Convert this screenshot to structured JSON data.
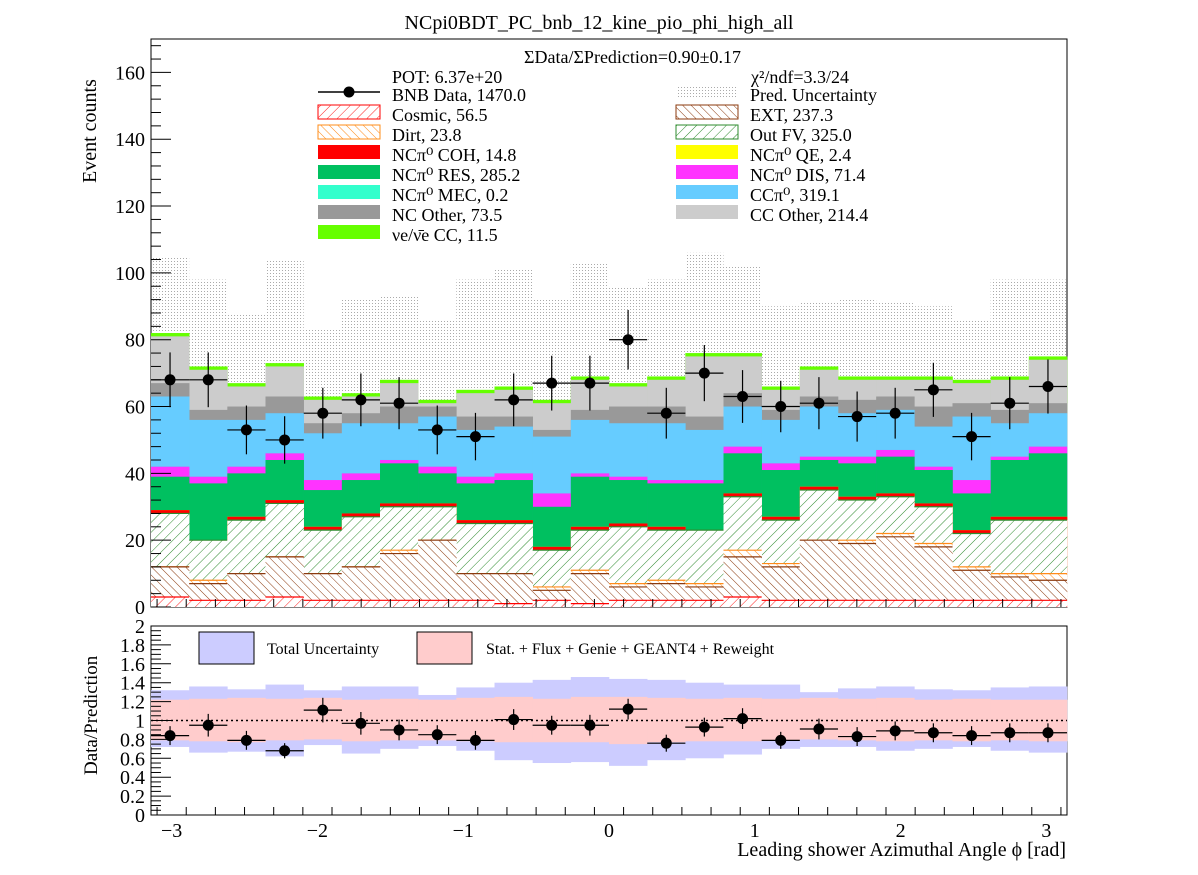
{
  "chart_data": [
    {
      "type": "stacked-histogram",
      "title": "NCpi0BDT_PC_bnb_12_kine_pio_phi_high_all",
      "ylabel": "Event counts",
      "xlim": [
        -3.1416,
        3.1416
      ],
      "ylim": [
        0,
        170
      ],
      "y_ticks": [
        0,
        20,
        40,
        60,
        80,
        100,
        120,
        140,
        160
      ],
      "grid": false,
      "summary_text": {
        "ratio_line": "ΣData/ΣPrediction=0.90±0.17",
        "pot": "POT: 6.37e+20",
        "chi2": "χ²/ndf=3.3/24"
      },
      "legend": {
        "placement": "top",
        "entries": [
          {
            "label": "BNB Data, 1470.0",
            "style": "marker",
            "color": "#000000"
          },
          {
            "label": "Pred. Uncertainty",
            "style": "dots",
            "color": "#c0c0c0"
          },
          {
            "label": "Cosmic, 56.5",
            "style": "hatch",
            "color": "#ff0000"
          },
          {
            "label": "EXT, 237.3",
            "style": "hatch",
            "color": "#8b3a0e"
          },
          {
            "label": "Dirt, 23.8",
            "style": "hatch",
            "color": "#ff8c1a"
          },
          {
            "label": "Out FV, 325.0",
            "style": "hatch",
            "color": "#2e8b2e"
          },
          {
            "label": "NCπ⁰ COH,  14.8",
            "style": "fill",
            "color": "#ff0000"
          },
          {
            "label": "NCπ⁰ QE,  2.4",
            "style": "fill",
            "color": "#ffff00"
          },
          {
            "label": "NCπ⁰ RES,  285.2",
            "style": "fill",
            "color": "#00c060"
          },
          {
            "label": "NCπ⁰ DIS,  71.4",
            "style": "fill",
            "color": "#ff33ff"
          },
          {
            "label": "NCπ⁰ MEC,  0.2",
            "style": "fill",
            "color": "#33ffcc"
          },
          {
            "label": "CCπ⁰, 319.1",
            "style": "fill",
            "color": "#66ccff"
          },
          {
            "label": "NC Other, 73.5",
            "style": "fill",
            "color": "#999999"
          },
          {
            "label": "CC Other, 214.4",
            "style": "fill",
            "color": "#cccccc"
          },
          {
            "label": "νe/ν̄e CC, 11.5",
            "style": "fill",
            "color": "#66ff00"
          }
        ]
      },
      "stack_cumulative": [
        {
          "name": "Cosmic",
          "color": "#ff0000",
          "values": [
            3,
            2,
            2,
            3,
            2,
            2,
            2,
            2,
            2,
            1,
            2,
            1,
            2,
            2,
            2,
            3,
            2,
            2,
            2,
            2,
            2,
            2,
            2,
            2
          ]
        },
        {
          "name": "EXT",
          "color": "#8b3a0e",
          "values": [
            12,
            7,
            10,
            15,
            10,
            12,
            16,
            20,
            10,
            10,
            5,
            10,
            6,
            7,
            6,
            15,
            12,
            20,
            19,
            21,
            18,
            11,
            9,
            8
          ]
        },
        {
          "name": "Dirt",
          "color": "#ff8c1a",
          "values": [
            12,
            8,
            10,
            15,
            10,
            12,
            17,
            20,
            10,
            10,
            6,
            11,
            7,
            8,
            7,
            17,
            13,
            20,
            20,
            22,
            19,
            12,
            10,
            10
          ]
        },
        {
          "name": "Out FV",
          "color": "#2e8b2e",
          "values": [
            28,
            20,
            26,
            31,
            23,
            27,
            30,
            30,
            25,
            25,
            17,
            23,
            24,
            23,
            23,
            33,
            26,
            35,
            32,
            33,
            30,
            22,
            26,
            26
          ]
        },
        {
          "name": "NCπ⁰ COH",
          "color": "#ff0000",
          "values": [
            29,
            20,
            27,
            32,
            24,
            28,
            31,
            31,
            26,
            26,
            18,
            24,
            25,
            24,
            23,
            34,
            27,
            36,
            33,
            34,
            31,
            23,
            27,
            27
          ]
        },
        {
          "name": "NCπ⁰ QE",
          "color": "#ffff00",
          "values": [
            29,
            20,
            27,
            32,
            24,
            28,
            31,
            31,
            26,
            26,
            18,
            24,
            25,
            24,
            23,
            34,
            27,
            36,
            33,
            34,
            31,
            23,
            27,
            27
          ]
        },
        {
          "name": "NCπ⁰ RES",
          "color": "#00c060",
          "values": [
            39,
            37,
            40,
            44,
            35,
            38,
            43,
            40,
            37,
            38,
            30,
            39,
            38,
            37,
            37,
            46,
            41,
            44,
            43,
            45,
            41,
            34,
            44,
            46
          ]
        },
        {
          "name": "NCπ⁰ DIS",
          "color": "#ff33ff",
          "values": [
            42,
            39,
            42,
            46,
            38,
            40,
            44,
            42,
            39,
            40,
            34,
            40,
            39,
            38,
            38,
            48,
            43,
            45,
            45,
            47,
            42,
            38,
            45,
            48
          ]
        },
        {
          "name": "NCπ⁰ MEC",
          "color": "#33ffcc",
          "values": [
            42,
            39,
            42,
            46,
            38,
            40,
            44,
            42,
            39,
            40,
            34,
            40,
            39,
            38,
            38,
            48,
            43,
            45,
            45,
            47,
            42,
            38,
            45,
            48
          ]
        },
        {
          "name": "CCπ⁰",
          "color": "#66ccff",
          "values": [
            63,
            56,
            56,
            58,
            52,
            55,
            55,
            57,
            53,
            54,
            51,
            56,
            55,
            55,
            53,
            60,
            56,
            60,
            58,
            59,
            54,
            57,
            55,
            58
          ]
        },
        {
          "name": "NC Other",
          "color": "#999999",
          "values": [
            67,
            59,
            60,
            63,
            55,
            58,
            60,
            60,
            57,
            57,
            53,
            59,
            60,
            60,
            57,
            64,
            59,
            63,
            62,
            63,
            60,
            61,
            59,
            61
          ]
        },
        {
          "name": "CC Other",
          "color": "#cccccc",
          "values": [
            81,
            71,
            66,
            72,
            62,
            63,
            67,
            61,
            64,
            65,
            61,
            68,
            66,
            68,
            75,
            75,
            65,
            71,
            68,
            68,
            68,
            67,
            68,
            74
          ]
        },
        {
          "name": "νe/ν̄e CC",
          "color": "#66ff00",
          "values": [
            82,
            72,
            67,
            73,
            63,
            64,
            68,
            62,
            65,
            66,
            62,
            69,
            67,
            69,
            76,
            76,
            66,
            72,
            69,
            69,
            69,
            68,
            69,
            75
          ]
        }
      ],
      "prediction_uncertainty_top": [
        105,
        98,
        88,
        104,
        83,
        92,
        93,
        86,
        98,
        101,
        92,
        103,
        96,
        98,
        106,
        102,
        90,
        91,
        92,
        91,
        90,
        86,
        98,
        98
      ],
      "data": {
        "name": "BNB Data",
        "x": [
          -3.011,
          -2.749,
          -2.487,
          -2.225,
          -1.963,
          -1.702,
          -1.44,
          -1.178,
          -0.916,
          -0.654,
          -0.393,
          -0.131,
          0.131,
          0.393,
          0.654,
          0.916,
          1.178,
          1.44,
          1.702,
          1.963,
          2.225,
          2.487,
          2.749,
          3.011
        ],
        "y": [
          68,
          68,
          53,
          50,
          58,
          62,
          61,
          53,
          51,
          62,
          67,
          67,
          80,
          58,
          70,
          63,
          60,
          61,
          57,
          58,
          65,
          51,
          61,
          66
        ],
        "yerr": [
          8.2,
          8.2,
          7.3,
          7.1,
          7.6,
          7.9,
          7.8,
          7.3,
          7.1,
          7.9,
          8.2,
          8.2,
          8.9,
          7.6,
          8.4,
          7.9,
          7.7,
          7.8,
          7.5,
          7.6,
          8.1,
          7.1,
          7.8,
          8.1
        ]
      }
    },
    {
      "type": "ratio",
      "ylabel": "Data/Prediction",
      "xlabel": "Leading shower Azimuthal Angle ϕ [rad]",
      "xlim": [
        -3.1416,
        3.1416
      ],
      "ylim": [
        0,
        2
      ],
      "y_ticks": [
        0,
        0.2,
        0.4,
        0.6,
        0.8,
        1,
        1.2,
        1.4,
        1.6,
        1.8,
        2
      ],
      "x_ticks": [
        -3,
        -2,
        -1,
        0,
        1,
        2,
        3
      ],
      "reference_line": 1,
      "legend": {
        "entries": [
          {
            "label": "Total Uncertainty",
            "color": "#ccccff"
          },
          {
            "label": "Stat. + Flux + Genie + GEANT4 + Reweight",
            "color": "#ffcccc"
          }
        ]
      },
      "total_uncertainty": {
        "lo": [
          0.72,
          0.66,
          0.67,
          0.62,
          0.74,
          0.65,
          0.7,
          0.73,
          0.68,
          0.58,
          0.55,
          0.56,
          0.52,
          0.58,
          0.6,
          0.64,
          0.7,
          0.72,
          0.72,
          0.68,
          0.7,
          0.72,
          0.68,
          0.66
        ],
        "hi": [
          1.32,
          1.36,
          1.33,
          1.38,
          1.32,
          1.36,
          1.36,
          1.27,
          1.35,
          1.4,
          1.43,
          1.46,
          1.44,
          1.43,
          1.4,
          1.38,
          1.38,
          1.3,
          1.34,
          1.36,
          1.33,
          1.32,
          1.35,
          1.36
        ]
      },
      "stat_syst_uncertainty": {
        "lo": [
          0.79,
          0.78,
          0.77,
          0.79,
          0.8,
          0.78,
          0.79,
          0.79,
          0.78,
          0.77,
          0.77,
          0.77,
          0.75,
          0.77,
          0.78,
          0.78,
          0.79,
          0.8,
          0.79,
          0.78,
          0.79,
          0.78,
          0.79,
          0.78
        ],
        "hi": [
          1.22,
          1.23,
          1.24,
          1.23,
          1.24,
          1.22,
          1.23,
          1.22,
          1.24,
          1.25,
          1.23,
          1.25,
          1.25,
          1.24,
          1.23,
          1.24,
          1.23,
          1.24,
          1.23,
          1.24,
          1.22,
          1.23,
          1.22,
          1.22
        ]
      },
      "points": {
        "x": [
          -3.011,
          -2.749,
          -2.487,
          -2.225,
          -1.963,
          -1.702,
          -1.44,
          -1.178,
          -0.916,
          -0.654,
          -0.393,
          -0.131,
          0.131,
          0.393,
          0.654,
          0.916,
          1.178,
          1.44,
          1.702,
          1.963,
          2.225,
          2.487,
          2.749,
          3.011
        ],
        "y": [
          0.84,
          0.95,
          0.79,
          0.68,
          1.11,
          0.97,
          0.9,
          0.85,
          0.79,
          1.01,
          0.95,
          0.95,
          1.12,
          0.76,
          0.93,
          1.02,
          0.79,
          0.91,
          0.83,
          0.89,
          0.87,
          0.84,
          0.87,
          0.87
        ],
        "yerr": [
          0.1,
          0.12,
          0.1,
          0.08,
          0.13,
          0.12,
          0.11,
          0.1,
          0.1,
          0.11,
          0.1,
          0.11,
          0.11,
          0.09,
          0.1,
          0.11,
          0.09,
          0.11,
          0.1,
          0.1,
          0.1,
          0.1,
          0.1,
          0.1
        ]
      }
    }
  ]
}
